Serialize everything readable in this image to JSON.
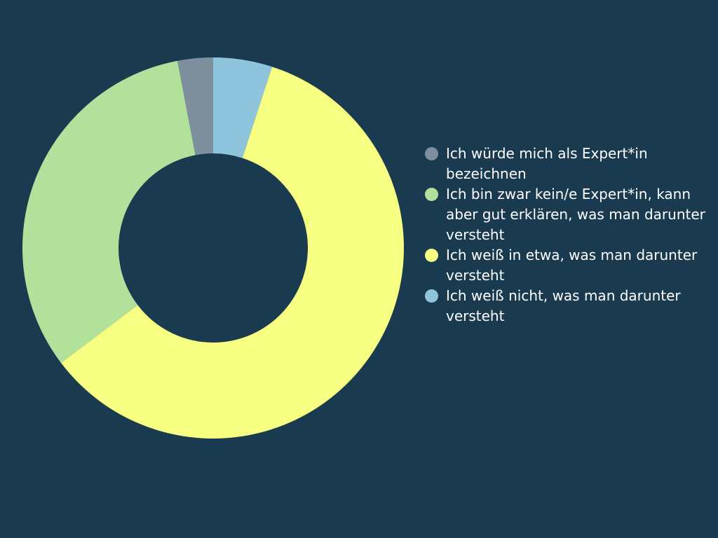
{
  "chart_data": {
    "type": "pie",
    "donut": true,
    "legend_position": "right",
    "categories": [
      "Ich weiß nicht, was man darunter versteht",
      "Ich weiß in etwa, was man darunter versteht",
      "Ich bin zwar kein/e Expert*in, kann aber gut erklären, was man darunter versteht",
      "Ich würde mich als Expert*in bezeichnen"
    ],
    "values": [
      5.0,
      59.7,
      32.3,
      3.0
    ],
    "colors": [
      "#8ec5dd",
      "#f6ff82",
      "#b2e19b",
      "#7e909e"
    ],
    "legend": [
      {
        "label": "Ich würde mich als Expert*in bezeichnen",
        "color": "#7e909e"
      },
      {
        "label": "Ich bin zwar kein/e Expert*in, kann aber gut erklären, was man darunter versteht",
        "color": "#b2e19b"
      },
      {
        "label": "Ich weiß in etwa, was man darunter versteht",
        "color": "#f6ff82"
      },
      {
        "label": "Ich weiß nicht, was man darunter versteht",
        "color": "#8ec5dd"
      }
    ]
  }
}
